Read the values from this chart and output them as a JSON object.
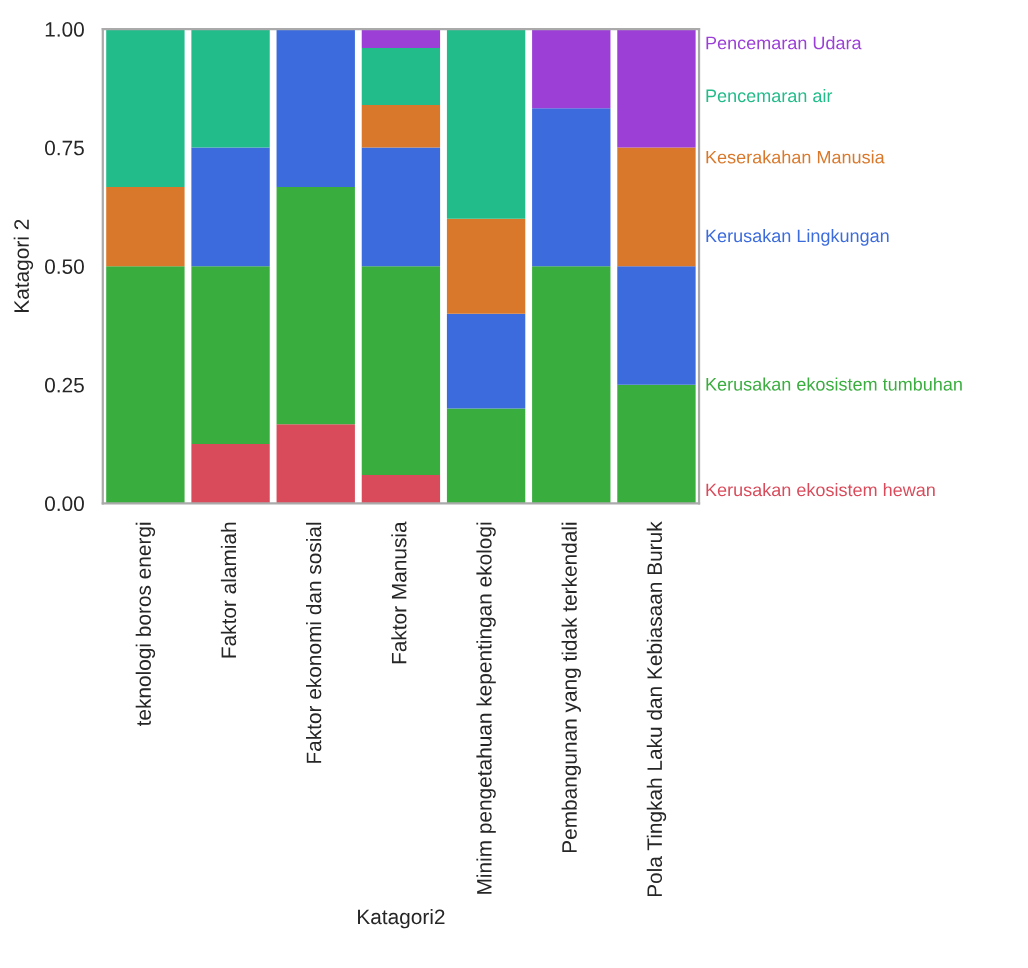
{
  "chart_data": {
    "type": "bar",
    "stacked": true,
    "xlabel": "Katagori2",
    "ylabel": "Katagori 2",
    "categories": [
      "teknologi boros energi",
      "Faktor alamiah",
      "Faktor ekonomi dan sosial",
      "Faktor Manusia",
      "Minim pengetahuan kepentingan ekologi",
      "Pembangunan yang tidak terkendali",
      "Pola Tingkah Laku dan Kebiasaan Buruk"
    ],
    "series": [
      {
        "name": "Kerusakan ekosistem hewan",
        "color": "#d94b5b",
        "values": [
          0,
          0.125,
          0.167,
          0.06,
          0,
          0,
          0
        ]
      },
      {
        "name": "Kerusakan ekosistem tumbuhan",
        "color": "#3aad3f",
        "values": [
          0.5,
          0.375,
          0.5,
          0.44,
          0.2,
          0.5,
          0.25
        ]
      },
      {
        "name": "Kerusakan Lingkungan",
        "color": "#3b6bdc",
        "values": [
          0,
          0.25,
          0.333,
          0.25,
          0.2,
          0.333,
          0.25
        ]
      },
      {
        "name": "Keserakahan Manusia",
        "color": "#d9782a",
        "values": [
          0.167,
          0,
          0,
          0.09,
          0.2,
          0,
          0.25
        ]
      },
      {
        "name": "Pencemaran air",
        "color": "#22bb8a",
        "values": [
          0.333,
          0.25,
          0,
          0.12,
          0.4,
          0,
          0
        ]
      },
      {
        "name": "Pencemaran Udara",
        "color": "#9b3fd6",
        "values": [
          0,
          0,
          0,
          0.04,
          0,
          0.167,
          0.25
        ]
      }
    ],
    "ylim": [
      0,
      1
    ],
    "yticks": [
      {
        "value": 0,
        "label": "0.00"
      },
      {
        "value": 0.25,
        "label": "0.25"
      },
      {
        "value": 0.5,
        "label": "0.50"
      },
      {
        "value": 0.75,
        "label": "0.75"
      },
      {
        "value": 1,
        "label": "1.00"
      }
    ],
    "grid": false,
    "legend": "right"
  }
}
